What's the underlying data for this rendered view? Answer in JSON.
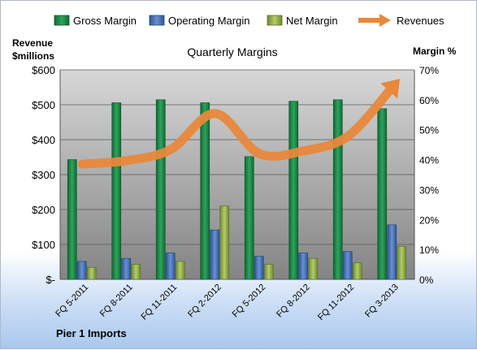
{
  "chart_data": {
    "type": "bar",
    "title": "Quarterly Margins",
    "categories": [
      "FQ 5-2011",
      "FQ 8-2011",
      "FQ 11-2011",
      "FQ 2-2012",
      "FQ 5-2012",
      "FQ 8-2012",
      "FQ 11-2012",
      "FQ 3-2013"
    ],
    "series": [
      {
        "name": "Gross Margin",
        "type": "bar",
        "axis": "right",
        "color": "#1f8a4a",
        "values": [
          40,
          59,
          60,
          59,
          41,
          59.5,
          60,
          57
        ]
      },
      {
        "name": "Operating Margin",
        "type": "bar",
        "axis": "right",
        "color": "#4a73b8",
        "values": [
          6,
          7,
          8.8,
          16.5,
          7.7,
          8.8,
          9.3,
          18.2
        ]
      },
      {
        "name": "Net Margin",
        "type": "bar",
        "axis": "right",
        "color": "#90ad4a",
        "values": [
          4,
          5,
          6,
          24.5,
          5,
          7,
          5.5,
          11
        ]
      },
      {
        "name": "Revenues",
        "type": "line",
        "axis": "left",
        "color": "#e8883a",
        "values": [
          330,
          340,
          372,
          475,
          360,
          368,
          410,
          550
        ]
      }
    ],
    "y_left": {
      "label_line1": "Revenue",
      "label_line2": "$millions",
      "ylim": [
        0,
        600
      ],
      "ticks": [
        {
          "v": 0,
          "t": "$-"
        },
        {
          "v": 100,
          "t": "$100"
        },
        {
          "v": 200,
          "t": "$200"
        },
        {
          "v": 300,
          "t": "$300"
        },
        {
          "v": 400,
          "t": "$400"
        },
        {
          "v": 500,
          "t": "$500"
        },
        {
          "v": 600,
          "t": "$600"
        }
      ]
    },
    "y_right": {
      "label": "Margin %",
      "ylim": [
        0,
        70
      ],
      "ticks": [
        {
          "v": 0,
          "t": "0%"
        },
        {
          "v": 10,
          "t": "10%"
        },
        {
          "v": 20,
          "t": "20%"
        },
        {
          "v": 30,
          "t": "30%"
        },
        {
          "v": 40,
          "t": "40%"
        },
        {
          "v": 50,
          "t": "50%"
        },
        {
          "v": 60,
          "t": "60%"
        },
        {
          "v": 70,
          "t": "70%"
        }
      ]
    },
    "legend": {
      "position": "top",
      "entries": [
        "Gross Margin",
        "Operating Margin",
        "Net Margin",
        "Revenues"
      ]
    },
    "grid": true
  },
  "footer": {
    "company": "Pier 1 Imports"
  }
}
